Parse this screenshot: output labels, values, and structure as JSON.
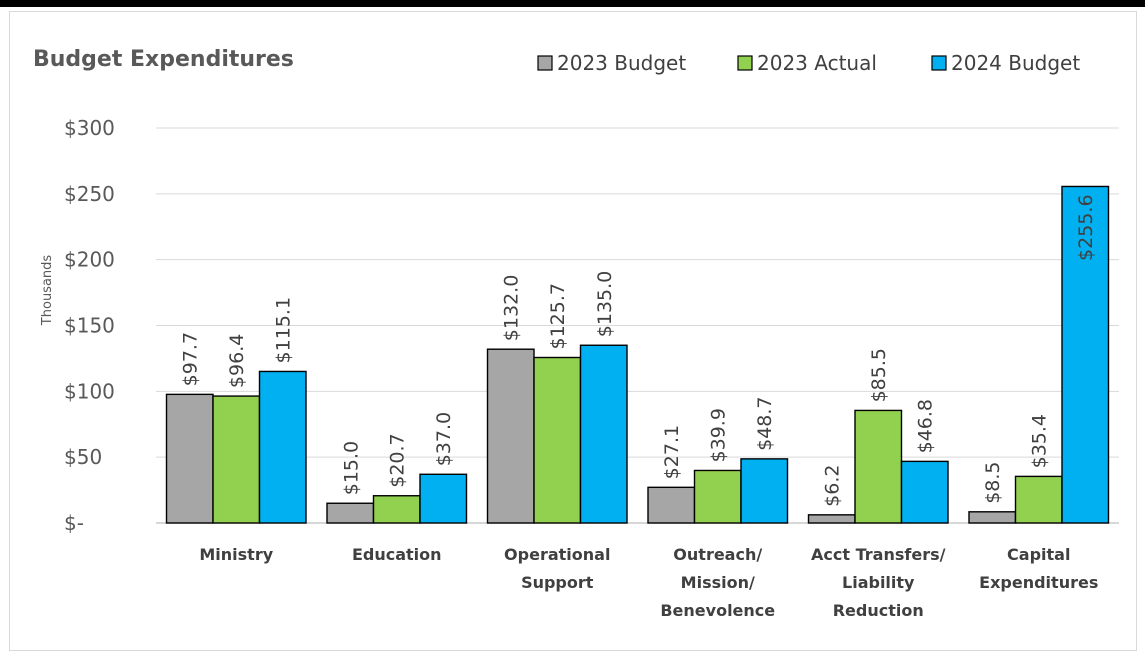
{
  "chart_data": {
    "type": "bar",
    "title": "Budget Expenditures",
    "ylabel": "Thousands",
    "xlabel": "",
    "ylim": [
      0,
      300
    ],
    "yticks": [
      0,
      50,
      100,
      150,
      200,
      250,
      300
    ],
    "ytick_labels": [
      "$-",
      "$50",
      "$100",
      "$150",
      "$200",
      "$250",
      "$300"
    ],
    "grid": true,
    "legend_position": "top-right",
    "categories": [
      [
        "Ministry"
      ],
      [
        "Education"
      ],
      [
        "Operational",
        "Support"
      ],
      [
        "Outreach/",
        "Mission/",
        "Benevolence"
      ],
      [
        "Acct Transfers/",
        "Liability",
        "Reduction"
      ],
      [
        "Capital",
        "Expenditures"
      ]
    ],
    "series": [
      {
        "name": "2023 Budget",
        "color": "#a6a6a6",
        "values": [
          97.7,
          15.0,
          132.0,
          27.1,
          6.2,
          8.5
        ],
        "labels": [
          "$97.7",
          "$15.0",
          "$132.0",
          "$27.1",
          "$6.2",
          "$8.5"
        ]
      },
      {
        "name": "2023 Actual",
        "color": "#92d050",
        "values": [
          96.4,
          20.7,
          125.7,
          39.9,
          85.5,
          35.4
        ],
        "labels": [
          "$96.4",
          "$20.7",
          "$125.7",
          "$39.9",
          "$85.5",
          "$35.4"
        ]
      },
      {
        "name": "2024 Budget",
        "color": "#00b0f0",
        "values": [
          115.1,
          37.0,
          135.0,
          48.7,
          46.8,
          255.6
        ],
        "labels": [
          "$115.1",
          "$37.0",
          "$135.0",
          "$48.7",
          "$46.8",
          "$255.6"
        ]
      }
    ]
  }
}
